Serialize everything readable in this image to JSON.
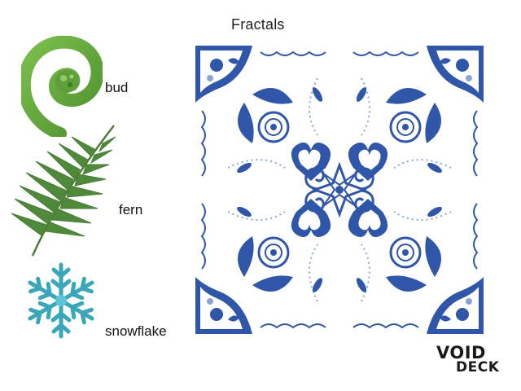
{
  "title": "Fractals",
  "items": [
    {
      "label": "bud",
      "icon": "fiddlehead-bud-icon",
      "color": "#5aa339"
    },
    {
      "label": "fern",
      "icon": "fern-frond-icon",
      "color": "#4d7c3a"
    },
    {
      "label": "snowflake",
      "icon": "snowflake-icon",
      "color": "#3aa6b9"
    }
  ],
  "tile": {
    "icon": "blue-floral-tile-icon",
    "primary": "#2f56a8",
    "light": "#8aa4d8"
  },
  "logo": {
    "line1": "VOID",
    "line2": "DECK"
  }
}
